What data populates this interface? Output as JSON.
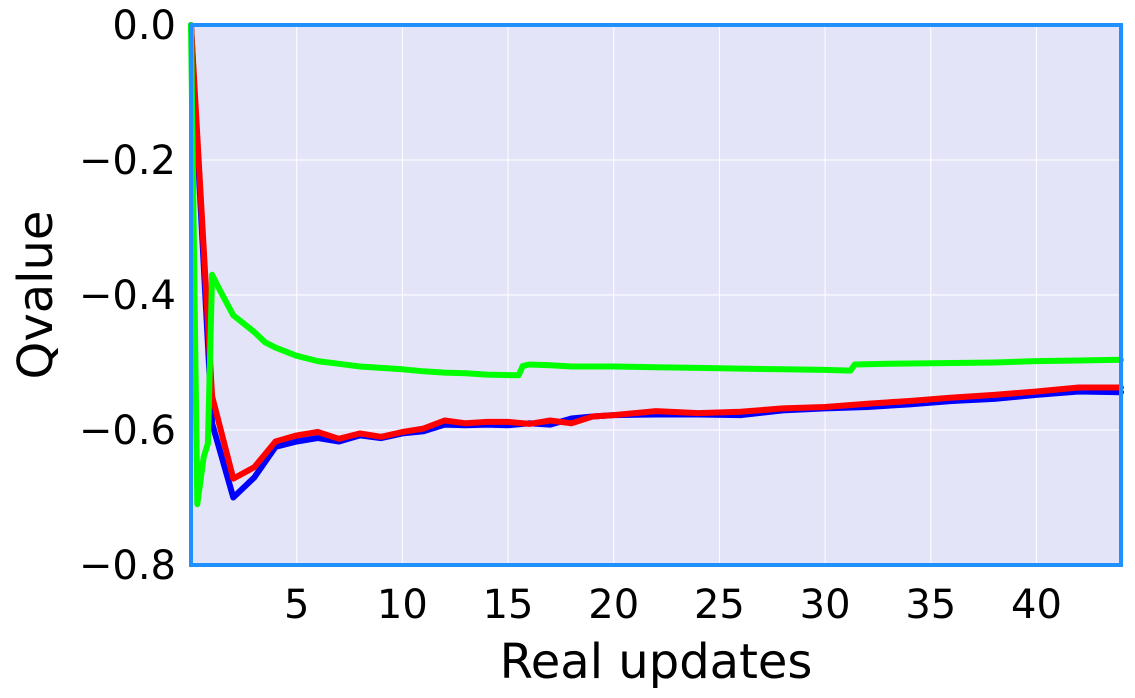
{
  "chart_data": {
    "type": "line",
    "title": "",
    "xlabel": "Real updates",
    "ylabel": "Qvalue",
    "xlim": [
      0,
      44
    ],
    "ylim": [
      -0.8,
      0.0
    ],
    "xticks": [
      5,
      10,
      15,
      20,
      25,
      30,
      35,
      40
    ],
    "xtick_labels": [
      "5",
      "10",
      "15",
      "20",
      "25",
      "30",
      "35",
      "40"
    ],
    "yticks": [
      0.0,
      -0.2,
      -0.4,
      -0.6,
      -0.8
    ],
    "ytick_labels": [
      "0.0",
      "−0.2",
      "−0.4",
      "−0.6",
      "−0.8"
    ],
    "grid": true,
    "colors": {
      "plot_background": "#e3e4f8",
      "frame": "#1e90ff",
      "grid": "#ffffff"
    },
    "series": [
      {
        "color": "#0000ff",
        "x": [
          0,
          1,
          2,
          3,
          4,
          5,
          6,
          7,
          8,
          9,
          10,
          11,
          12,
          13,
          14,
          15,
          16,
          17,
          18,
          19,
          20,
          22,
          24,
          26,
          28,
          30,
          32,
          34,
          36,
          38,
          40,
          42,
          44
        ],
        "y": [
          0.0,
          -0.59,
          -0.7,
          -0.67,
          -0.625,
          -0.617,
          -0.612,
          -0.617,
          -0.608,
          -0.612,
          -0.605,
          -0.602,
          -0.592,
          -0.593,
          -0.592,
          -0.593,
          -0.59,
          -0.592,
          -0.583,
          -0.58,
          -0.578,
          -0.577,
          -0.577,
          -0.578,
          -0.571,
          -0.568,
          -0.566,
          -0.562,
          -0.557,
          -0.554,
          -0.548,
          -0.543,
          -0.544
        ]
      },
      {
        "color": "#ff0000",
        "x": [
          0,
          1,
          2,
          3,
          4,
          5,
          6,
          7,
          8,
          9,
          10,
          11,
          12,
          13,
          14,
          15,
          16,
          17,
          18,
          19,
          20,
          22,
          24,
          26,
          28,
          30,
          32,
          34,
          36,
          38,
          40,
          42,
          44
        ],
        "y": [
          0.0,
          -0.55,
          -0.672,
          -0.655,
          -0.617,
          -0.608,
          -0.603,
          -0.613,
          -0.605,
          -0.61,
          -0.603,
          -0.598,
          -0.586,
          -0.59,
          -0.588,
          -0.588,
          -0.591,
          -0.586,
          -0.59,
          -0.58,
          -0.578,
          -0.572,
          -0.575,
          -0.573,
          -0.568,
          -0.566,
          -0.561,
          -0.557,
          -0.552,
          -0.548,
          -0.543,
          -0.537,
          -0.537
        ]
      },
      {
        "color": "#00ff00",
        "x": [
          0,
          0.3,
          0.6,
          0.8,
          1.0,
          1.4,
          2.0,
          2.6,
          3.0,
          3.5,
          4.0,
          5.0,
          6.0,
          7.0,
          8.0,
          9.0,
          10.0,
          11.0,
          12.0,
          13.0,
          14.0,
          15.5,
          15.7,
          16.0,
          17.0,
          18.0,
          20.0,
          22.0,
          24.0,
          26.0,
          28.0,
          30.0,
          31.2,
          31.4,
          33.0,
          35.0,
          38.0,
          40.0,
          42.0,
          44.0
        ],
        "y": [
          0.0,
          -0.71,
          -0.64,
          -0.62,
          -0.37,
          -0.395,
          -0.43,
          -0.445,
          -0.455,
          -0.47,
          -0.478,
          -0.49,
          -0.498,
          -0.502,
          -0.506,
          -0.508,
          -0.51,
          -0.513,
          -0.515,
          -0.516,
          -0.518,
          -0.519,
          -0.505,
          -0.503,
          -0.504,
          -0.506,
          -0.506,
          -0.507,
          -0.508,
          -0.509,
          -0.51,
          -0.511,
          -0.512,
          -0.503,
          -0.502,
          -0.501,
          -0.5,
          -0.498,
          -0.497,
          -0.496
        ]
      }
    ]
  }
}
